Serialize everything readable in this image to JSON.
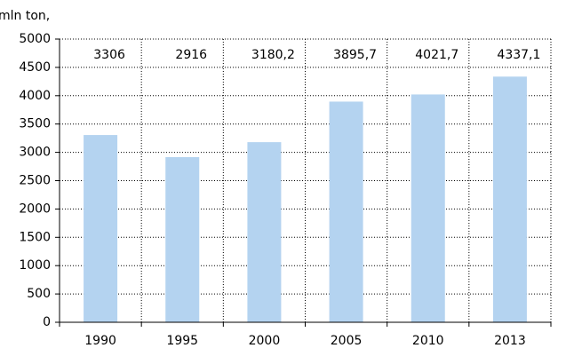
{
  "chart_data": {
    "type": "bar",
    "y_label": "mln ton,",
    "categories": [
      "1990",
      "1995",
      "2000",
      "2005",
      "2010",
      "2013"
    ],
    "values": [
      3306,
      2916,
      3180.2,
      3895.7,
      4021.7,
      4337.1
    ],
    "value_labels": [
      "3306",
      "2916",
      "3180,2",
      "3895,7",
      "4021,7",
      "4337,1"
    ],
    "color": "#b4d3f0",
    "ylim": [
      0,
      5000
    ],
    "yticks": [
      0,
      500,
      1000,
      1500,
      2000,
      2500,
      3000,
      3500,
      4000,
      4500,
      5000
    ],
    "grid": true
  }
}
